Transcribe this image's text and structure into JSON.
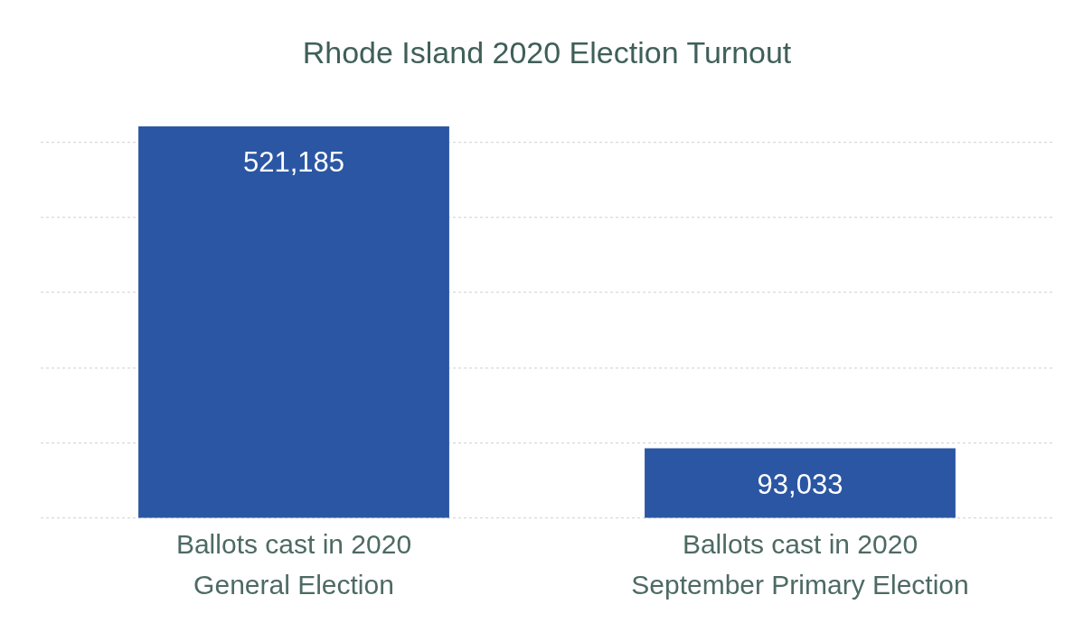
{
  "chart_data": {
    "type": "bar",
    "title": "Rhode Island 2020 Election Turnout",
    "categories": [
      "Ballots cast in 2020\nGeneral Election",
      "Ballots cast in 2020\nSeptember Primary Election"
    ],
    "values": [
      521185,
      93033
    ],
    "value_labels": [
      "521,185",
      "93,033"
    ],
    "color": "#2b56a3",
    "grid": "y",
    "tick_labels": "x"
  }
}
